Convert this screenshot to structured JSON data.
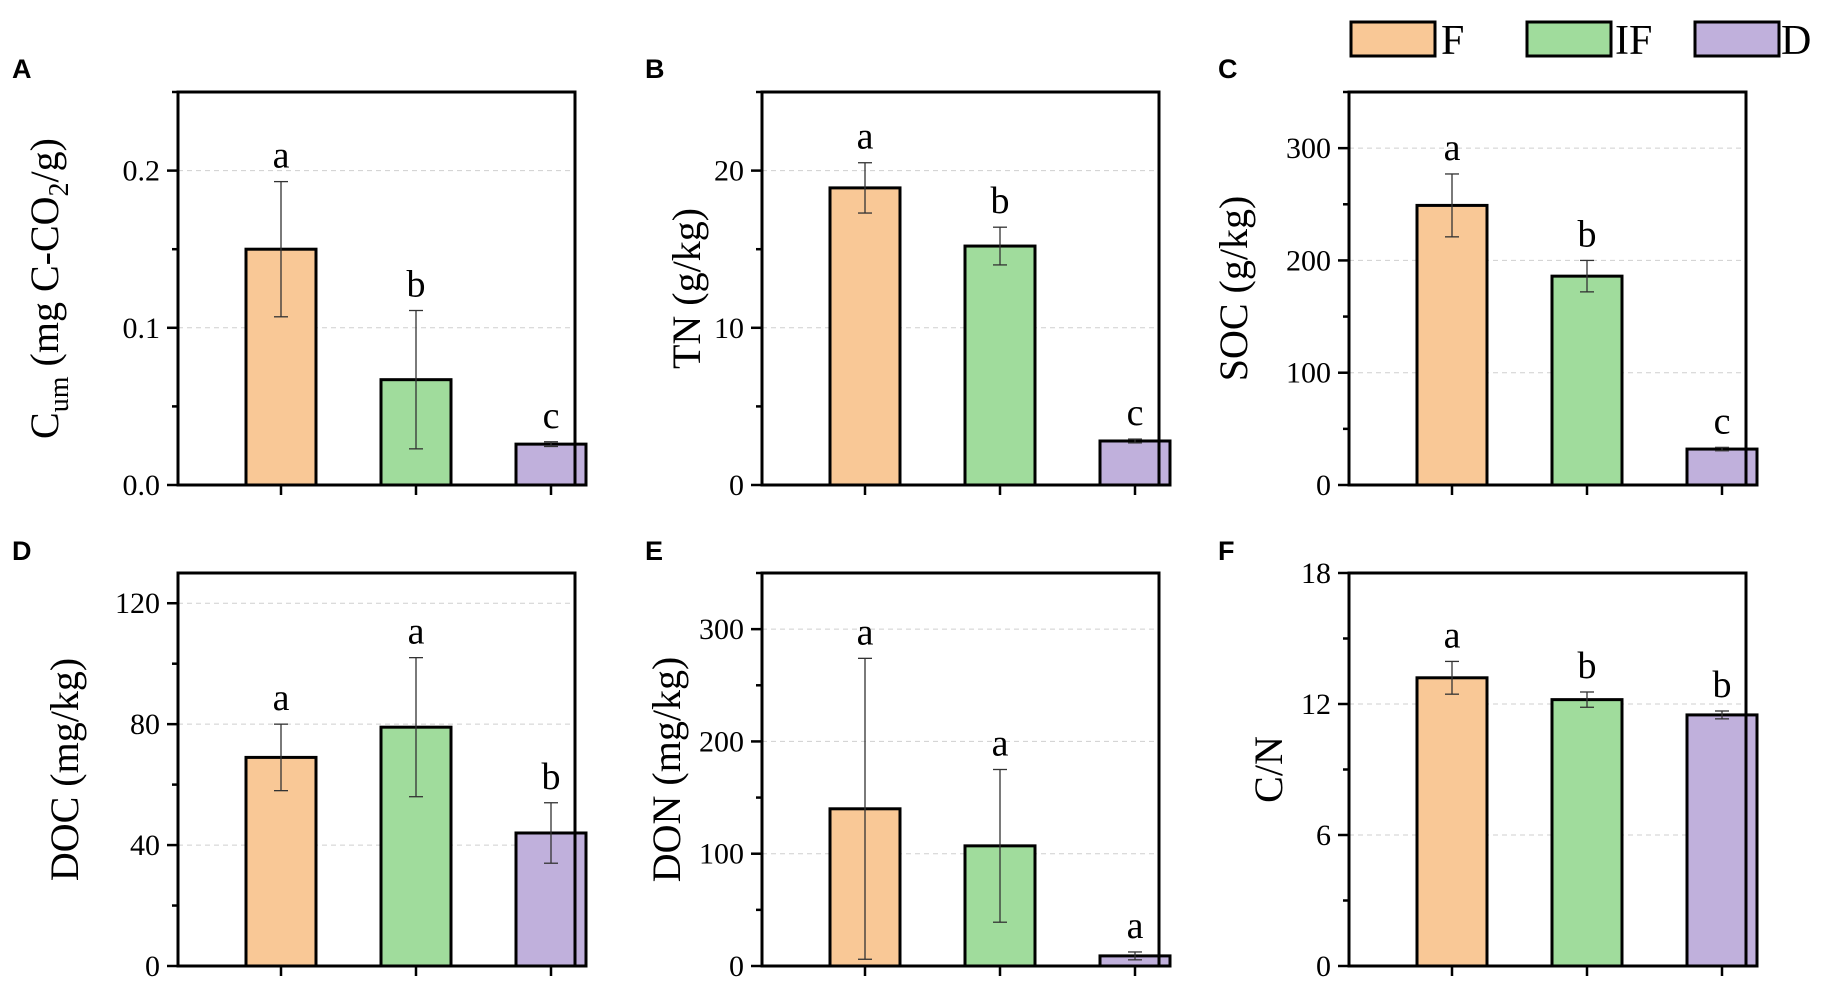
{
  "legend": {
    "items": [
      {
        "label": "F",
        "color": "#f9c896"
      },
      {
        "label": "IF",
        "color": "#a0dc9c"
      },
      {
        "label": "D",
        "color": "#c0b0dc"
      }
    ]
  },
  "chart_data": [
    {
      "panel": "A",
      "type": "bar",
      "categories": [
        "F",
        "IF",
        "D"
      ],
      "ylabel": "C_um (mg C-CO_2/g)",
      "ylabel_parts": {
        "main": "C",
        "sub": "um",
        "mid": " (mg C-CO",
        "sub2": "2",
        "end": "/g)"
      },
      "ylim": [
        0,
        0.25
      ],
      "ticks": [
        0,
        0.1,
        0.2
      ],
      "tick_labels": [
        "0.0",
        "0.1",
        "0.2"
      ],
      "minor_ticks": [
        0.05,
        0.15,
        0.25
      ],
      "values": [
        0.15,
        0.067,
        0.026
      ],
      "errors": [
        0.043,
        0.044,
        0.0015
      ],
      "letters": [
        "a",
        "b",
        "c"
      ]
    },
    {
      "panel": "B",
      "type": "bar",
      "categories": [
        "F",
        "IF",
        "D"
      ],
      "ylabel": "TN (g/kg)",
      "ylim": [
        0,
        25
      ],
      "ticks": [
        0,
        10,
        20
      ],
      "tick_labels": [
        "0",
        "10",
        "20"
      ],
      "minor_ticks": [
        5,
        15,
        25
      ],
      "values": [
        18.9,
        15.2,
        2.8
      ],
      "errors": [
        1.6,
        1.2,
        0.12
      ],
      "letters": [
        "a",
        "b",
        "c"
      ]
    },
    {
      "panel": "C",
      "type": "bar",
      "categories": [
        "F",
        "IF",
        "D"
      ],
      "ylabel": "SOC (g/kg)",
      "ylim": [
        0,
        350
      ],
      "ticks": [
        0,
        100,
        200,
        300
      ],
      "tick_labels": [
        "0",
        "100",
        "200",
        "300"
      ],
      "minor_ticks": [
        50,
        150,
        250,
        350
      ],
      "values": [
        249,
        186,
        32
      ],
      "errors": [
        28,
        14,
        1.5
      ],
      "letters": [
        "a",
        "b",
        "c"
      ]
    },
    {
      "panel": "D",
      "type": "bar",
      "categories": [
        "F",
        "IF",
        "D"
      ],
      "ylabel": "DOC (mg/kg)",
      "ylim": [
        0,
        130
      ],
      "ticks": [
        0,
        40,
        80,
        120
      ],
      "tick_labels": [
        "0",
        "40",
        "80",
        "120"
      ],
      "minor_ticks": [
        20,
        60,
        100
      ],
      "values": [
        69,
        79,
        44
      ],
      "errors": [
        11,
        23,
        10
      ],
      "letters": [
        "a",
        "a",
        "b"
      ]
    },
    {
      "panel": "E",
      "type": "bar",
      "categories": [
        "F",
        "IF",
        "D"
      ],
      "ylabel": "DON (mg/kg)",
      "ylim": [
        0,
        350
      ],
      "ticks": [
        0,
        100,
        200,
        300
      ],
      "tick_labels": [
        "0",
        "100",
        "200",
        "300"
      ],
      "minor_ticks": [
        50,
        150,
        250,
        350
      ],
      "values": [
        140,
        107,
        9
      ],
      "errors": [
        134,
        68,
        3.5
      ],
      "letters": [
        "a",
        "a",
        "a"
      ]
    },
    {
      "panel": "F",
      "type": "bar",
      "categories": [
        "F",
        "IF",
        "D"
      ],
      "ylabel": "C/N",
      "ylim": [
        0,
        18
      ],
      "ticks": [
        0,
        6,
        12,
        18
      ],
      "tick_labels": [
        "0",
        "6",
        "12",
        "18"
      ],
      "minor_ticks": [
        3,
        9,
        15
      ],
      "values": [
        13.2,
        12.2,
        11.5
      ],
      "errors": [
        0.75,
        0.35,
        0.18
      ],
      "letters": [
        "a",
        "b",
        "b"
      ]
    }
  ]
}
